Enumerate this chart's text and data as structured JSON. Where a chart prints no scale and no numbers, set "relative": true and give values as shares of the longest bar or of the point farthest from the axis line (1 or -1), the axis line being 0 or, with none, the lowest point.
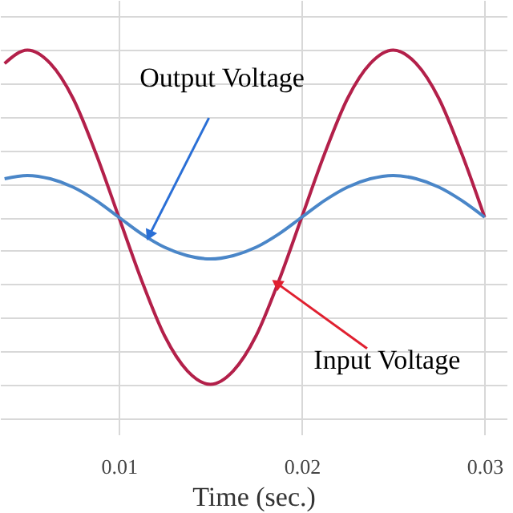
{
  "chart_data": {
    "type": "line",
    "relative": true,
    "xlabel": "Time  (sec.)",
    "x": [
      0.00375,
      0.005,
      0.00625,
      0.0075,
      0.00875,
      0.01,
      0.01125,
      0.0125,
      0.01375,
      0.015,
      0.01625,
      0.0175,
      0.01875,
      0.02,
      0.02125,
      0.0225,
      0.02375,
      0.025,
      0.02625,
      0.0275,
      0.02875,
      0.03
    ],
    "series": [
      {
        "color": "#b3204a",
        "values": [
          0.92,
          1,
          0.92,
          0.71,
          0.38,
          0,
          -0.38,
          -0.71,
          -0.92,
          -1,
          -0.92,
          -0.71,
          -0.38,
          0,
          0.38,
          0.71,
          0.92,
          1,
          0.92,
          0.71,
          0.38,
          0
        ]
      },
      {
        "color": "#4a86c8",
        "values": [
          0.23,
          0.25,
          0.23,
          0.18,
          0.1,
          0,
          -0.1,
          -0.18,
          -0.23,
          -0.25,
          -0.23,
          -0.18,
          -0.1,
          0,
          0.1,
          0.18,
          0.23,
          0.25,
          0.23,
          0.18,
          0.1,
          0
        ]
      }
    ],
    "xlim": [
      0.0035,
      0.0312
    ],
    "xticks": [
      0.01,
      0.02,
      0.03
    ],
    "grid": true,
    "line_style": "solid",
    "marker": "none",
    "annotations": [
      {
        "text": "Output Voltage",
        "x": 0.0117,
        "y": -0.1
      },
      {
        "text": "Input Voltage",
        "x": 0.0187,
        "y": -0.4
      }
    ]
  }
}
